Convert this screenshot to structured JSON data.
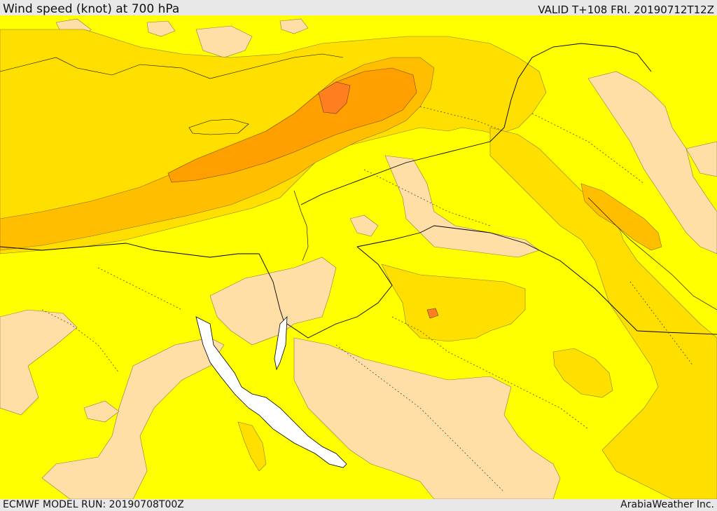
{
  "header": {
    "title": "Wind speed (knot) at 700 hPa",
    "valid": "VALID T+108 FRI. 20190712T12Z"
  },
  "footer": {
    "model_run": "ECMWF MODEL RUN: 20190708T00Z",
    "credit": "ArabiaWeather Inc."
  },
  "map": {
    "colors": {
      "calm": "#ffdfa6",
      "light": "#ffff00",
      "moderate": "#ffdf00",
      "fresh": "#ffbf00",
      "strong": "#ff9f00",
      "very_strong": "#ff7f20",
      "water_masked": "#ffffff",
      "coastline": "#000000"
    }
  }
}
